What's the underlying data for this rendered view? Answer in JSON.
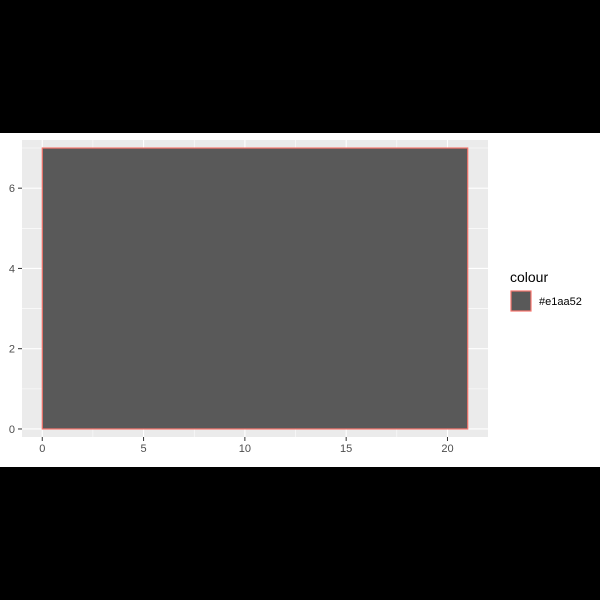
{
  "chart_data": {
    "type": "rect",
    "title": "",
    "xlabel": "",
    "ylabel": "",
    "xlim": [
      -1,
      22
    ],
    "ylim": [
      -0.2,
      7.2
    ],
    "x_ticks": [
      0,
      5,
      10,
      15,
      20
    ],
    "y_ticks": [
      0,
      2,
      4,
      6
    ],
    "grid": true,
    "rects": [
      {
        "xmin": 0,
        "xmax": 21,
        "ymin": 0,
        "ymax": 7,
        "fill": "#595959",
        "outline": "#e1aa52"
      }
    ],
    "legend": {
      "title": "colour",
      "placement": "right",
      "entries": [
        {
          "label": "#e1aa52",
          "fill": "#595959",
          "outline": "#f8766d"
        }
      ]
    },
    "colors": {
      "panel": "#ebebeb",
      "grid_major": "#ffffff",
      "rect_fill": "#595959",
      "rect_outline": "#f8766d",
      "outer_background": "#000000"
    }
  }
}
